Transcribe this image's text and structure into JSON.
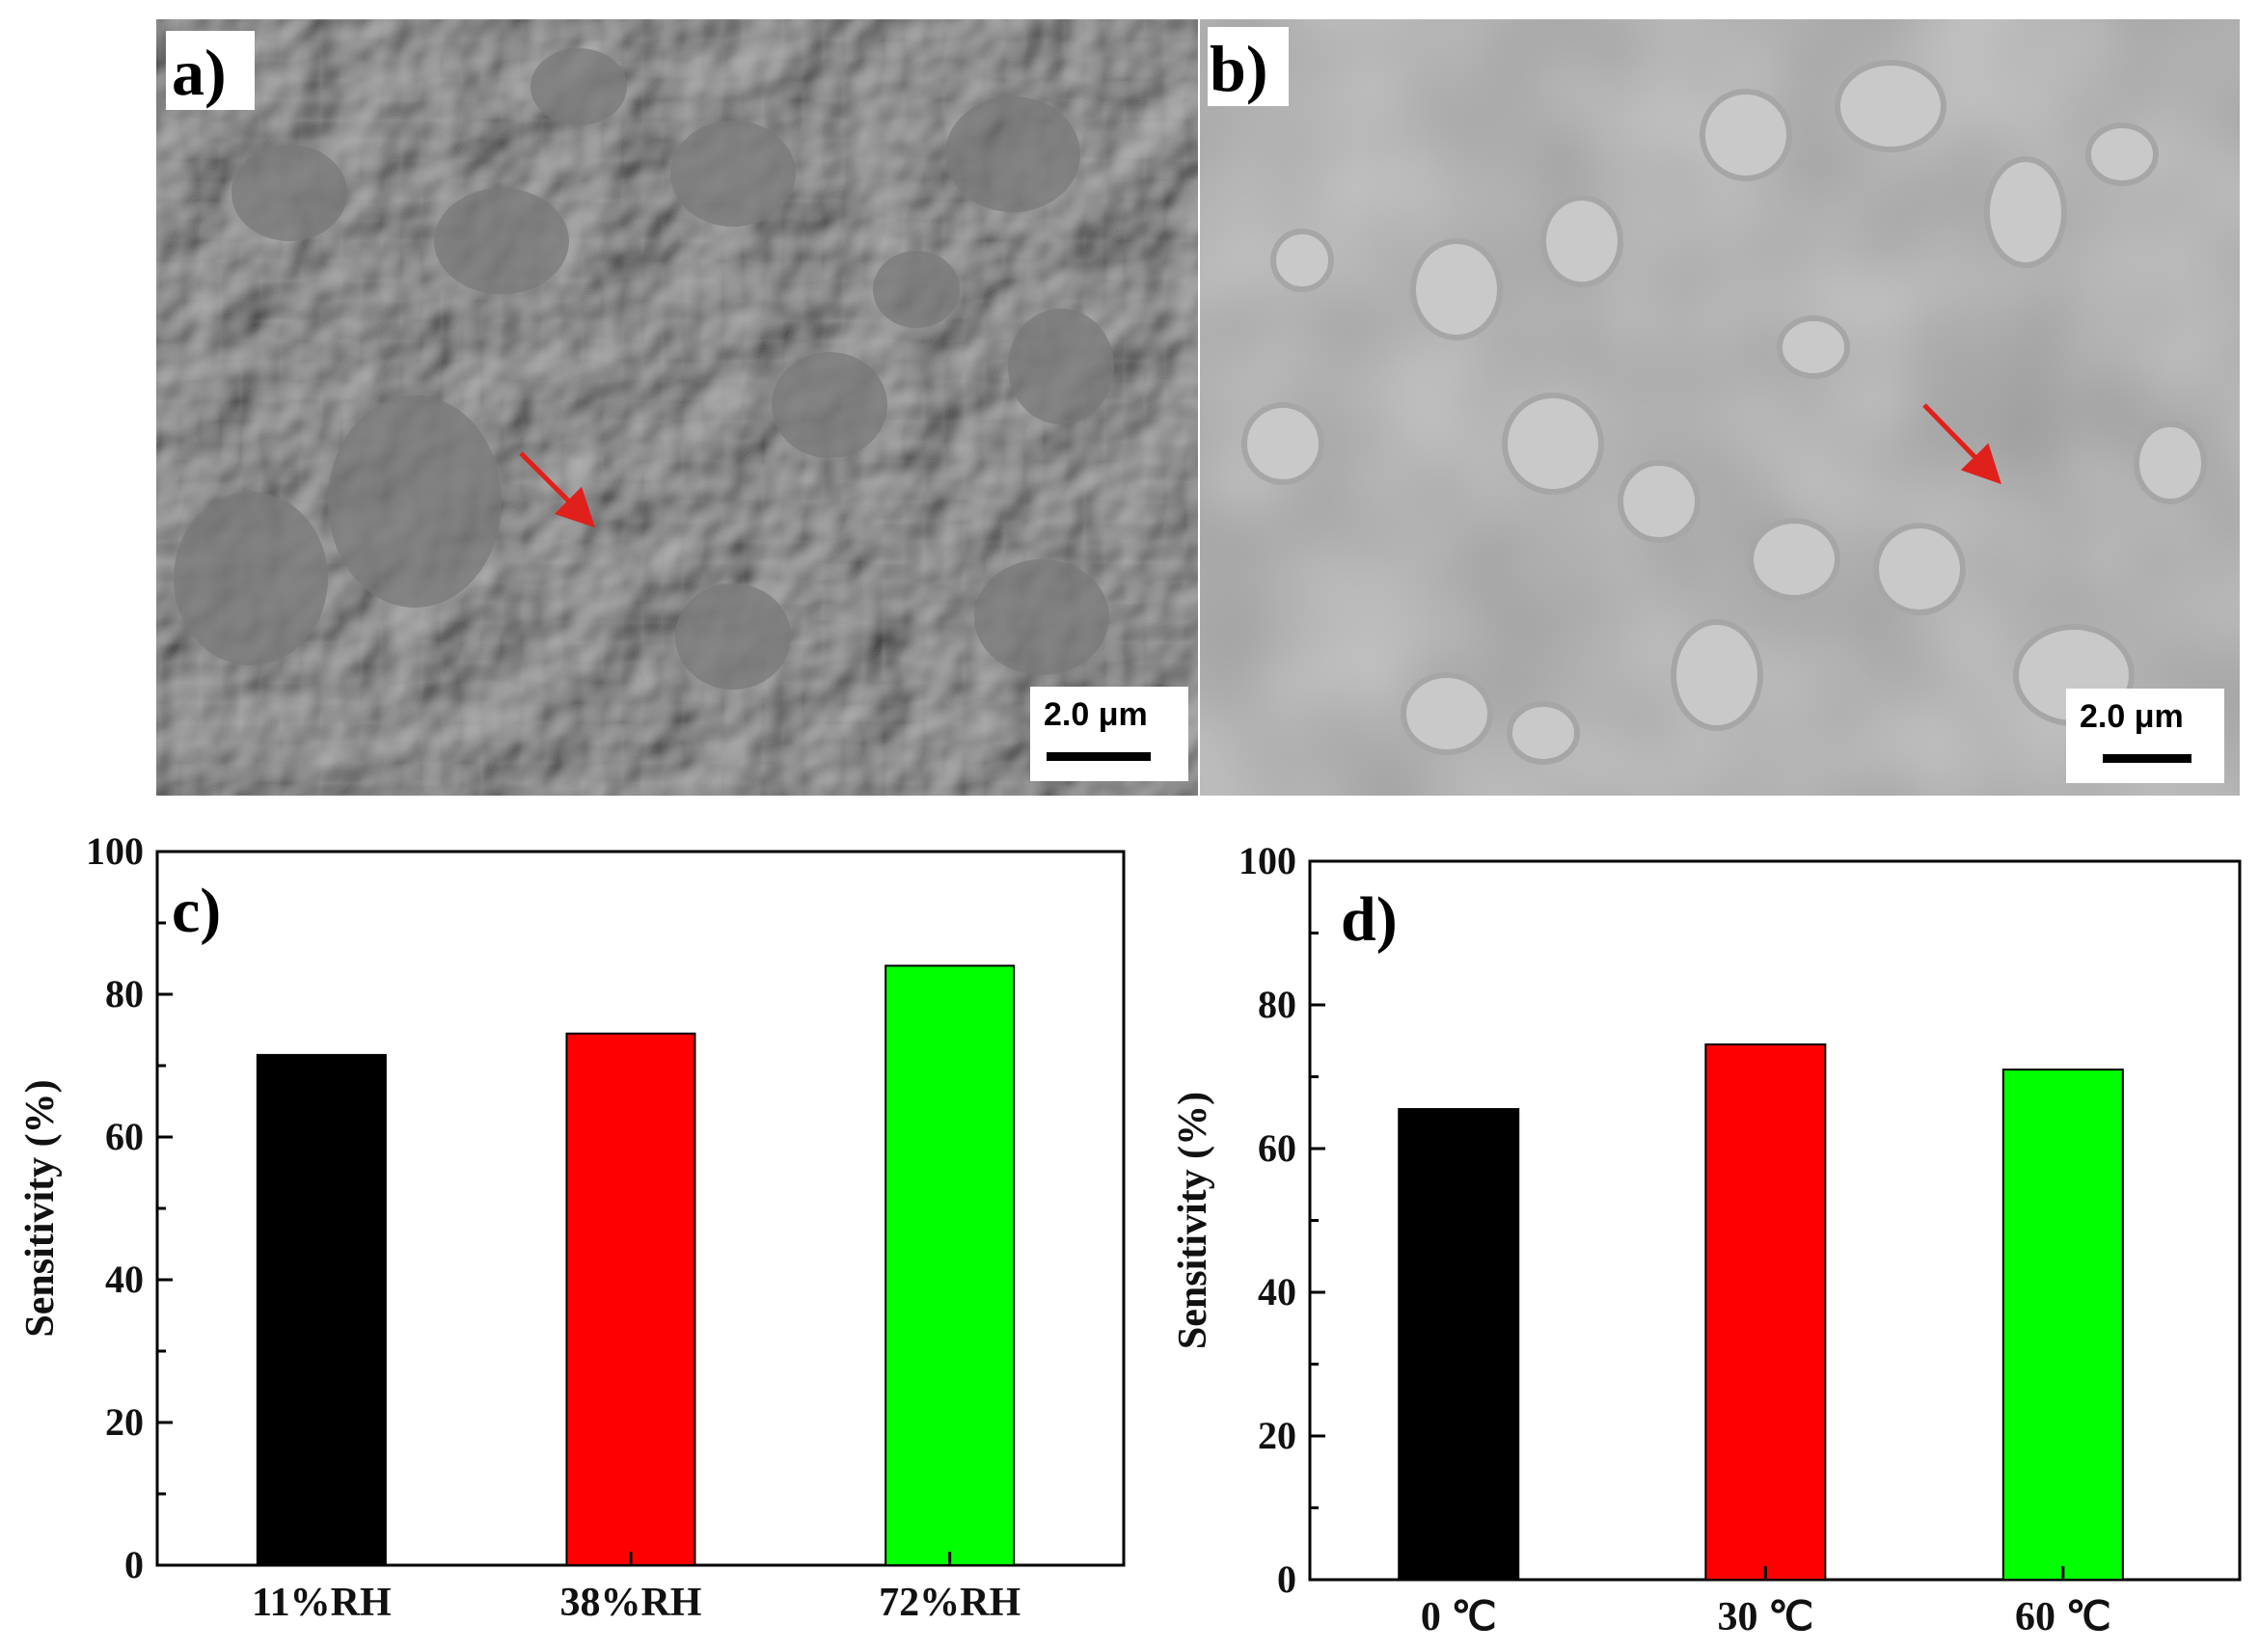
{
  "micrographs": [
    {
      "label": "a)",
      "scale_bar": "2.0 μm"
    },
    {
      "label": "b)",
      "scale_bar": "2.0 μm"
    }
  ],
  "chart_data": [
    {
      "type": "bar",
      "panel_label": "c)",
      "categories": [
        "11%RH",
        "38%RH",
        "72%RH"
      ],
      "values": [
        71.5,
        74.5,
        84
      ],
      "colors": [
        "#000000",
        "#ff0000",
        "#00ff00"
      ],
      "ylabel": "Sensitivity (%)",
      "xlabel": "",
      "ylim": [
        0,
        100
      ],
      "yticks": [
        0,
        20,
        40,
        60,
        80,
        100
      ],
      "grid": false,
      "legend": "none"
    },
    {
      "type": "bar",
      "panel_label": "d)",
      "categories": [
        "0 ℃",
        "30 ℃",
        "60 ℃"
      ],
      "values": [
        65.5,
        74.5,
        71
      ],
      "colors": [
        "#000000",
        "#ff0000",
        "#00ff00"
      ],
      "ylabel": "Sensitivity (%)",
      "xlabel": "",
      "ylim": [
        0,
        100
      ],
      "yticks": [
        0,
        20,
        40,
        60,
        80,
        100
      ],
      "grid": false,
      "legend": "none"
    }
  ]
}
